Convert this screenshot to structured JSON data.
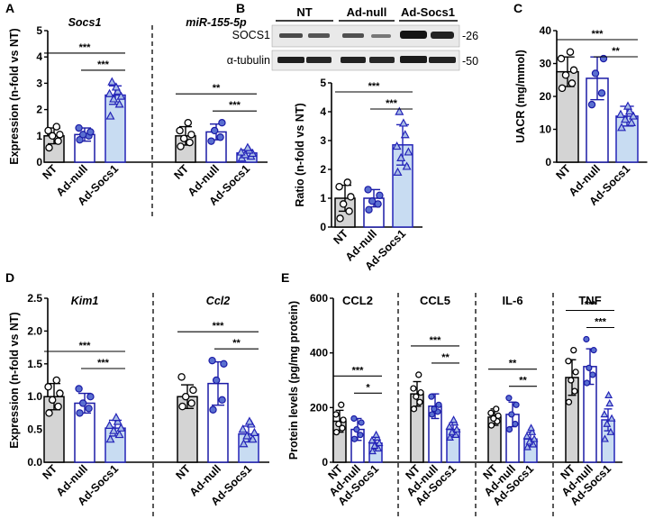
{
  "colors": {
    "nt_fill": "#d4d4d4",
    "adnull_fill": "#ffffff",
    "adsocs1_fill": "#c8dcf2",
    "nt_edge": "#000000",
    "adnull_edge": "#1a1aa6",
    "adsocs1_edge": "#2424b8",
    "nt_point_fill": "#ffffff",
    "adnull_point_fill": "#5a6fd0",
    "adsocs1_point_fill": "#a9bde6"
  },
  "blot": {
    "lanes": [
      "NT",
      "Ad-null",
      "Ad-Socs1"
    ],
    "rows": [
      {
        "protein": "SOCS1",
        "mw": "-26"
      },
      {
        "protein": "α-tubulin",
        "mw": "-50"
      }
    ]
  },
  "chart_data": [
    {
      "panel": "A",
      "type": "bar",
      "ylabel": "Expression (n-fold vs NT)",
      "ylim": [
        0,
        5
      ],
      "ticks": [
        0,
        1,
        2,
        3,
        4,
        5
      ],
      "categories": [
        "NT",
        "Ad-null",
        "Ad-Socs1"
      ],
      "groups": [
        {
          "label": "Socs1",
          "italic": true,
          "values": [
            1.0,
            1.05,
            2.55
          ],
          "errors": [
            0.3,
            0.25,
            0.35
          ],
          "points": [
            [
              0.55,
              0.8,
              1.0,
              1.05,
              1.2,
              1.35
            ],
            [
              0.85,
              1.0,
              1.05,
              1.15,
              1.3
            ],
            [
              1.75,
              2.2,
              2.4,
              2.5,
              2.6,
              2.7,
              2.85,
              3.05
            ]
          ],
          "sig": [
            {
              "from": 0,
              "to": 2,
              "label": "***"
            },
            {
              "from": 1,
              "to": 2,
              "label": "***"
            }
          ]
        },
        {
          "label": "miR-155-5p",
          "italic": true,
          "values": [
            1.0,
            1.15,
            0.35
          ],
          "errors": [
            0.35,
            0.3,
            0.12
          ],
          "points": [
            [
              0.6,
              0.75,
              0.9,
              1.05,
              1.2,
              1.5
            ],
            [
              0.8,
              0.95,
              1.2,
              1.5
            ],
            [
              0.15,
              0.22,
              0.28,
              0.33,
              0.38,
              0.45,
              0.55
            ]
          ],
          "sig": [
            {
              "from": 0,
              "to": 2,
              "label": "**"
            },
            {
              "from": 1,
              "to": 2,
              "label": "***"
            }
          ]
        }
      ]
    },
    {
      "panel": "B",
      "type": "bar",
      "ylabel": "Ratio (n-fold vs NT)",
      "ylim": [
        0,
        5
      ],
      "ticks": [
        0,
        1,
        2,
        3,
        4,
        5
      ],
      "categories": [
        "NT",
        "Ad-null",
        "Ad-Socs1"
      ],
      "groups": [
        {
          "label": "",
          "italic": false,
          "values": [
            1.0,
            1.0,
            2.85
          ],
          "errors": [
            0.45,
            0.3,
            0.7
          ],
          "points": [
            [
              0.3,
              0.55,
              0.8,
              1.05,
              1.4,
              1.55
            ],
            [
              0.6,
              0.8,
              0.9,
              1.1,
              1.3
            ],
            [
              1.9,
              2.1,
              2.4,
              2.6,
              2.8,
              3.2,
              3.6,
              4.0
            ]
          ],
          "sig": [
            {
              "from": 0,
              "to": 2,
              "label": "***"
            },
            {
              "from": 1,
              "to": 2,
              "label": "***"
            }
          ]
        }
      ]
    },
    {
      "panel": "C",
      "type": "bar",
      "ylabel": "UACR (mg/mmol)",
      "ylim": [
        0,
        40
      ],
      "ticks": [
        0,
        10,
        20,
        30,
        40
      ],
      "categories": [
        "NT",
        "Ad-null",
        "Ad-Socs1"
      ],
      "groups": [
        {
          "label": "",
          "italic": false,
          "values": [
            27.5,
            25.5,
            14.0
          ],
          "errors": [
            4.5,
            6.5,
            3.0
          ],
          "points": [
            [
              22.5,
              24.0,
              26.5,
              28.0,
              31.5,
              33.5
            ],
            [
              17.5,
              21.0,
              27.0,
              31.5
            ],
            [
              10.5,
              12.0,
              13.0,
              14.0,
              14.5,
              15.5,
              17.0
            ]
          ],
          "sig": [
            {
              "from": 0,
              "to": 2,
              "label": "***"
            },
            {
              "from": 1,
              "to": 2,
              "label": "**"
            }
          ]
        }
      ]
    },
    {
      "panel": "D",
      "type": "bar",
      "ylabel": "Expression (n-fold vs NT)",
      "ylim": [
        0,
        2.5
      ],
      "ticks": [
        0.0,
        0.5,
        1.0,
        1.5,
        2.0,
        2.5
      ],
      "categories": [
        "NT",
        "Ad-null",
        "Ad-Socs1"
      ],
      "groups": [
        {
          "label": "Kim1",
          "italic": true,
          "values": [
            1.0,
            0.9,
            0.52
          ],
          "errors": [
            0.2,
            0.15,
            0.12
          ],
          "points": [
            [
              0.75,
              0.85,
              0.95,
              1.05,
              1.15,
              1.25
            ],
            [
              0.75,
              0.82,
              0.9,
              1.0,
              1.12
            ],
            [
              0.35,
              0.42,
              0.48,
              0.52,
              0.56,
              0.62,
              0.68
            ]
          ],
          "sig": [
            {
              "from": 0,
              "to": 2,
              "label": "***"
            },
            {
              "from": 1,
              "to": 2,
              "label": "***"
            }
          ]
        },
        {
          "label": "Ccl2",
          "italic": true,
          "values": [
            1.0,
            1.2,
            0.43
          ],
          "errors": [
            0.18,
            0.33,
            0.12
          ],
          "points": [
            [
              0.85,
              0.9,
              1.0,
              1.1,
              1.3
            ],
            [
              0.8,
              0.95,
              1.25,
              1.5,
              1.55
            ],
            [
              0.28,
              0.35,
              0.4,
              0.45,
              0.5,
              0.58,
              0.62
            ]
          ],
          "sig": [
            {
              "from": 0,
              "to": 2,
              "label": "***"
            },
            {
              "from": 1,
              "to": 2,
              "label": "**"
            }
          ]
        }
      ]
    },
    {
      "panel": "E",
      "type": "bar",
      "ylabel": "Protein levels (pg/mg protein)",
      "ylim": [
        0,
        600
      ],
      "ticks": [
        0,
        200,
        400,
        600
      ],
      "categories": [
        "NT",
        "Ad-null",
        "Ad-Socs1"
      ],
      "groups": [
        {
          "label": "CCL2",
          "italic": false,
          "values": [
            150,
            120,
            70
          ],
          "errors": [
            40,
            40,
            22
          ],
          "points": [
            [
              110,
              125,
              140,
              155,
              175,
              210
            ],
            [
              85,
              100,
              120,
              145,
              160
            ],
            [
              40,
              50,
              60,
              70,
              80,
              90,
              100
            ]
          ],
          "sig": [
            {
              "from": 0,
              "to": 2,
              "label": "***"
            },
            {
              "from": 1,
              "to": 2,
              "label": "*"
            }
          ]
        },
        {
          "label": "CCL5",
          "italic": false,
          "values": [
            250,
            205,
            120
          ],
          "errors": [
            45,
            45,
            25
          ],
          "points": [
            [
              195,
              220,
              240,
              255,
              270,
              320
            ],
            [
              175,
              185,
              195,
              210,
              240
            ],
            [
              90,
              100,
              110,
              120,
              130,
              145,
              155
            ]
          ],
          "sig": [
            {
              "from": 0,
              "to": 2,
              "label": "***"
            },
            {
              "from": 1,
              "to": 2,
              "label": "**"
            }
          ]
        },
        {
          "label": "IL-6",
          "italic": false,
          "values": [
            165,
            175,
            85
          ],
          "errors": [
            30,
            45,
            25
          ],
          "points": [
            [
              135,
              150,
              160,
              170,
              180,
              195
            ],
            [
              120,
              140,
              175,
              210,
              235
            ],
            [
              55,
              65,
              75,
              85,
              95,
              110,
              125
            ]
          ],
          "sig": [
            {
              "from": 0,
              "to": 2,
              "label": "**"
            },
            {
              "from": 1,
              "to": 2,
              "label": "**"
            }
          ]
        },
        {
          "label": "TNF",
          "italic": false,
          "values": [
            310,
            350,
            155
          ],
          "errors": [
            65,
            65,
            40
          ],
          "points": [
            [
              220,
              260,
              300,
              330,
              370,
              410
            ],
            [
              290,
              320,
              345,
              410,
              450
            ],
            [
              85,
              110,
              140,
              160,
              175,
              215,
              245
            ]
          ],
          "sig": [
            {
              "from": 0,
              "to": 2,
              "label": "***"
            },
            {
              "from": 1,
              "to": 2,
              "label": "***"
            }
          ]
        }
      ]
    }
  ]
}
